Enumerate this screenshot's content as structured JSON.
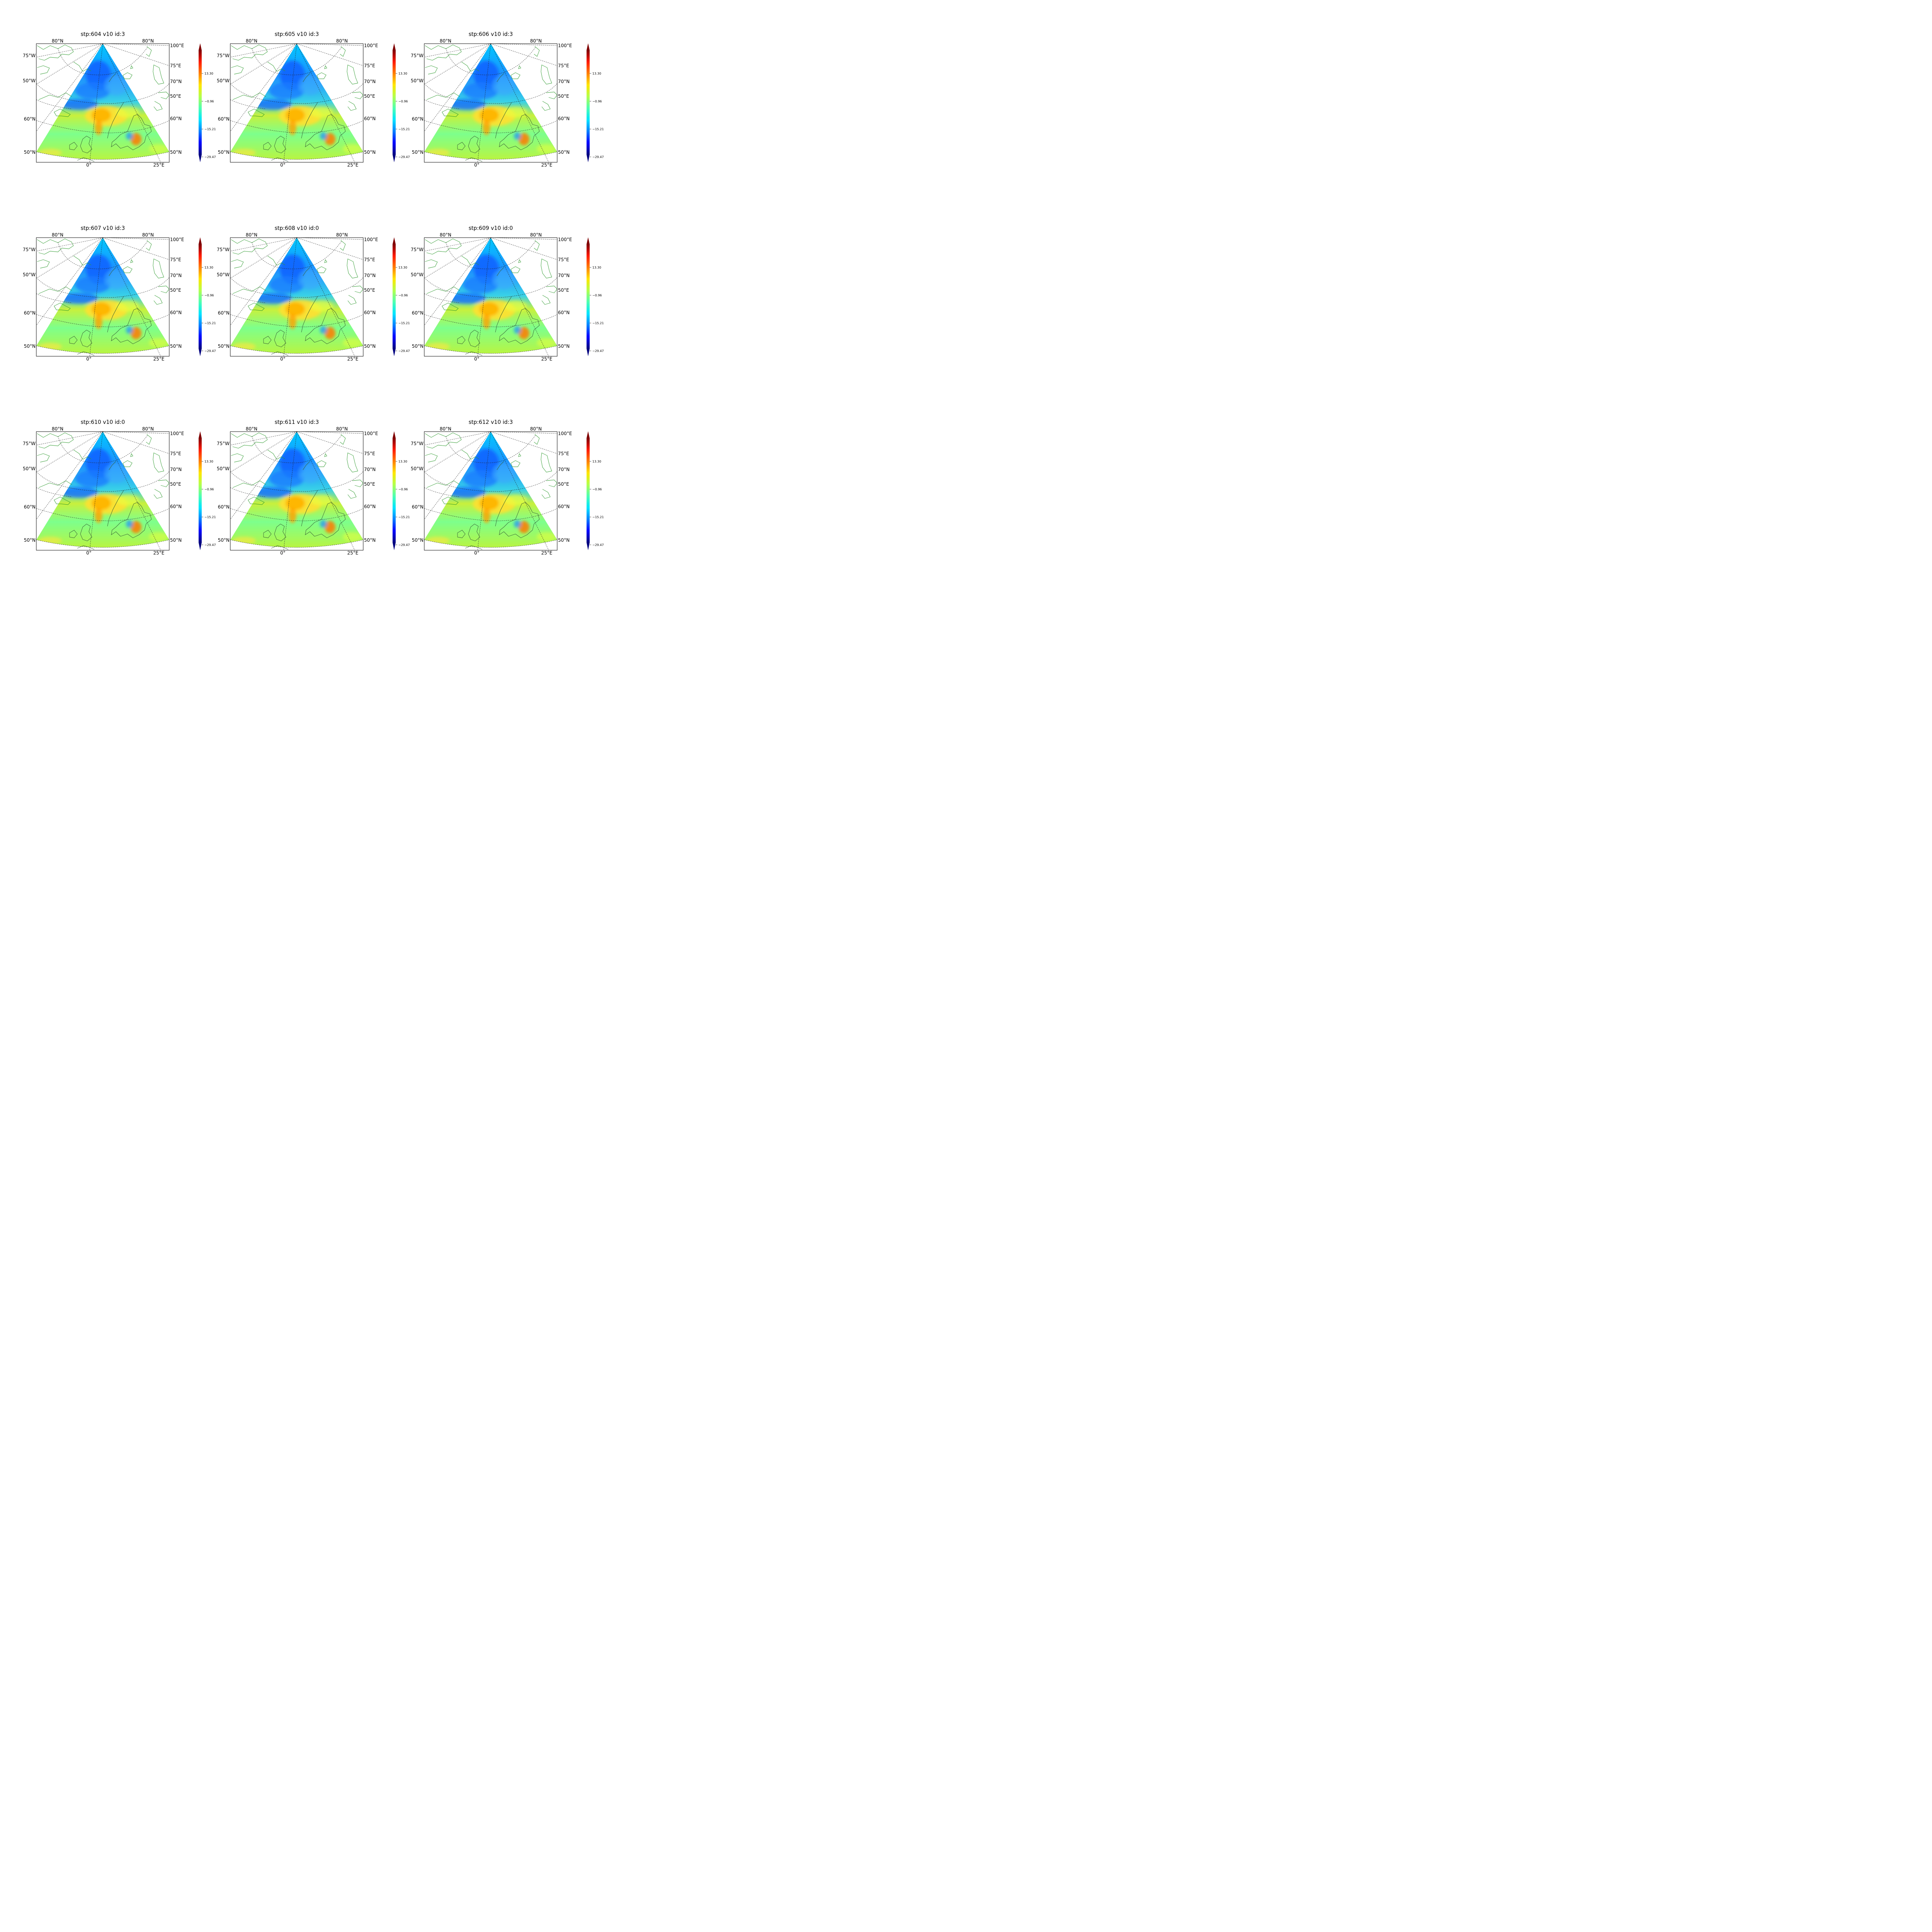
{
  "figure": {
    "variable": "v10",
    "colorbar": {
      "ticks": [
        "13.30",
        "−0.96",
        "−15.21",
        "−29.47"
      ],
      "colormap": [
        "#00007f",
        "#0000ff",
        "#007fff",
        "#00e5ff",
        "#4dffb3",
        "#b3ff4d",
        "#ffe600",
        "#ff7f00",
        "#ff1a00",
        "#7f0000"
      ]
    },
    "axis_labels": {
      "top_left": "80°N",
      "top_right": "80°N",
      "left": [
        "75°W",
        "50°W",
        "60°N",
        "50°N"
      ],
      "right": [
        "100°E",
        "75°E",
        "70°N",
        "50°E",
        "60°N",
        "50°N"
      ],
      "bottom": [
        "0°",
        "25°E"
      ]
    },
    "panels": [
      {
        "title": "stp:604 v10 id:3",
        "step": 604,
        "id": 3
      },
      {
        "title": "stp:605 v10 id:3",
        "step": 605,
        "id": 3
      },
      {
        "title": "stp:606 v10 id:3",
        "step": 606,
        "id": 3
      },
      {
        "title": "stp:607 v10 id:3",
        "step": 607,
        "id": 3
      },
      {
        "title": "stp:608 v10 id:0",
        "step": 608,
        "id": 0
      },
      {
        "title": "stp:609 v10 id:0",
        "step": 609,
        "id": 0
      },
      {
        "title": "stp:610 v10 id:0",
        "step": 610,
        "id": 0
      },
      {
        "title": "stp:611 v10 id:3",
        "step": 611,
        "id": 3
      },
      {
        "title": "stp:612 v10 id:3",
        "step": 612,
        "id": 3
      }
    ]
  }
}
